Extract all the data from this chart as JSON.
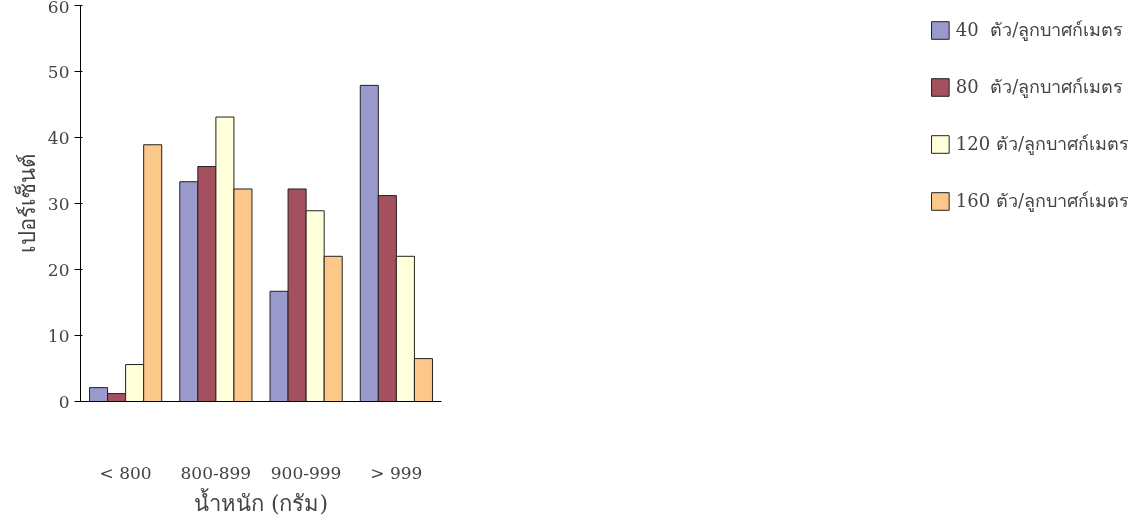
{
  "chart_data": {
    "type": "bar",
    "xlabel": "น้ำหนัก (กรัม)",
    "ylabel": "เปอร์เซ็นต์",
    "categories": [
      "< 800",
      "800-899",
      "900-999",
      "> 999"
    ],
    "series": [
      {
        "name": "40  ตัว/ลูกบาศก์เมตร",
        "color": "#9999cc",
        "values": [
          2.1,
          33.3,
          16.7,
          47.9
        ]
      },
      {
        "name": "80  ตัว/ลูกบาศก์เมตร",
        "color": "#a4505f",
        "values": [
          1.2,
          35.6,
          32.2,
          31.2
        ]
      },
      {
        "name": "120 ตัว/ลูกบาศก์เมตร",
        "color": "#ffffd9",
        "values": [
          5.6,
          43.1,
          28.9,
          22.0
        ]
      },
      {
        "name": "160 ตัว/ลูกบาศก์เมตร",
        "color": "#fbc88a",
        "values": [
          38.9,
          32.2,
          22.0,
          6.5
        ]
      }
    ],
    "ylim": [
      0,
      60
    ],
    "yticks": [
      0,
      10,
      20,
      30,
      40,
      50,
      60
    ],
    "grid": false,
    "legend": "right"
  }
}
